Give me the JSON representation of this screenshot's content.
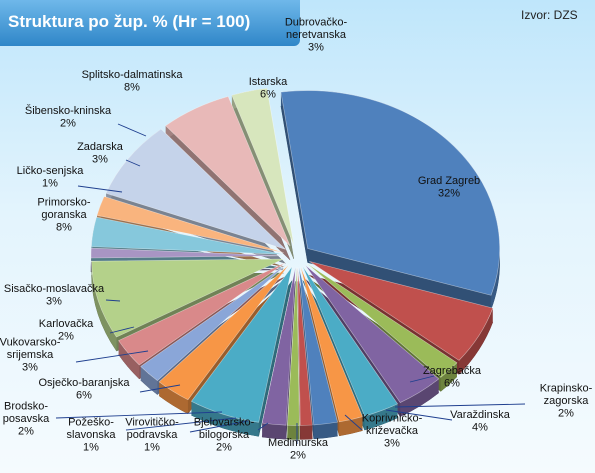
{
  "source_label": "Izvor: DZS",
  "chart_data": {
    "type": "pie",
    "title": "Struktura po žup. % (Hr = 100)",
    "slices": [
      {
        "name": "Grad Zagreb",
        "value": 32,
        "label": "32%",
        "color": "#4f81bd"
      },
      {
        "name": "Zagrebačka",
        "value": 6,
        "label": "6%",
        "color": "#c0504d"
      },
      {
        "name": "Krapinsko-zagorska",
        "value": 2,
        "label": "2%",
        "color": "#9bbb59"
      },
      {
        "name": "Varaždinska",
        "value": 4,
        "label": "4%",
        "color": "#8064a2"
      },
      {
        "name": "Koprivničko-križevačka",
        "value": 3,
        "label": "3%",
        "color": "#4bacc6"
      },
      {
        "name": "Međimurska",
        "value": 2,
        "label": "2%",
        "color": "#f79646"
      },
      {
        "name": "Bjelovarsko-bilogorska",
        "value": 2,
        "label": "2%",
        "color": "#4f81bd"
      },
      {
        "name": "Virovitičko-podravska",
        "value": 1,
        "label": "1%",
        "color": "#c0504d"
      },
      {
        "name": "Požeško-slavonska",
        "value": 1,
        "label": "1%",
        "color": "#9bbb59"
      },
      {
        "name": "Brodsko-posavska",
        "value": 2,
        "label": "2%",
        "color": "#8064a2"
      },
      {
        "name": "Osječko-baranjska",
        "value": 6,
        "label": "6%",
        "color": "#4bacc6"
      },
      {
        "name": "Vukovarsko-srijemska",
        "value": 3,
        "label": "3%",
        "color": "#f79646"
      },
      {
        "name": "Karlovačka",
        "value": 2,
        "label": "2%",
        "color": "#8aa6d8"
      },
      {
        "name": "Sisačko-moslavačka",
        "value": 3,
        "label": "3%",
        "color": "#d9898a"
      },
      {
        "name": "Primorsko-goranska",
        "value": 8,
        "label": "8%",
        "color": "#b4d18a"
      },
      {
        "name": "Ličko-senjska",
        "value": 1,
        "label": "1%",
        "color": "#a895c3"
      },
      {
        "name": "Zadarska",
        "value": 3,
        "label": "3%",
        "color": "#86c8dc"
      },
      {
        "name": "Šibensko-kninska",
        "value": 2,
        "label": "2%",
        "color": "#f9b47e"
      },
      {
        "name": "Splitsko-dalmatinska",
        "value": 8,
        "label": "8%",
        "color": "#c5d3ea"
      },
      {
        "name": "Istarska",
        "value": 6,
        "label": "6%",
        "color": "#e8b9b8"
      },
      {
        "name": "Dubrovačko-neretvanska",
        "value": 3,
        "label": "3%",
        "color": "#d7e6bd"
      }
    ],
    "label_lines": {
      "Grad Zagreb": [
        "Grad Zagreb"
      ],
      "Zagrebačka": [
        "Zagrebačka"
      ],
      "Krapinsko-zagorska": [
        "Krapinsko-",
        "zagorska"
      ],
      "Varaždinska": [
        "Varaždinska"
      ],
      "Koprivničko-križevačka": [
        "Koprivničko-",
        "križevačka"
      ],
      "Međimurska": [
        "Međimurska"
      ],
      "Bjelovarsko-bilogorska": [
        "Bjelovarsko-",
        "bilogorska"
      ],
      "Virovitičko-podravska": [
        "Virovitičko-",
        "podravska"
      ],
      "Požeško-slavonska": [
        "Požeško-",
        "slavonska"
      ],
      "Brodsko-posavska": [
        "Brodsko-",
        "posavska"
      ],
      "Osječko-baranjska": [
        "Osječko-baranjska"
      ],
      "Vukovarsko-srijemska": [
        "Vukovarsko-",
        "srijemska"
      ],
      "Karlovačka": [
        "Karlovačka"
      ],
      "Sisačko-moslavačka": [
        "Sisačko-moslavačka"
      ],
      "Primorsko-goranska": [
        "Primorsko-",
        "goranska"
      ],
      "Ličko-senjska": [
        "Ličko-senjska"
      ],
      "Zadarska": [
        "Zadarska"
      ],
      "Šibensko-kninska": [
        "Šibensko-kninska"
      ],
      "Splitsko-dalmatinska": [
        "Splitsko-dalmatinska"
      ],
      "Istarska": [
        "Istarska"
      ],
      "Dubrovačko-neretvanska": [
        "Dubrovačko-",
        "neretvanska"
      ]
    },
    "style": "3d-exploded",
    "legend": "none"
  }
}
